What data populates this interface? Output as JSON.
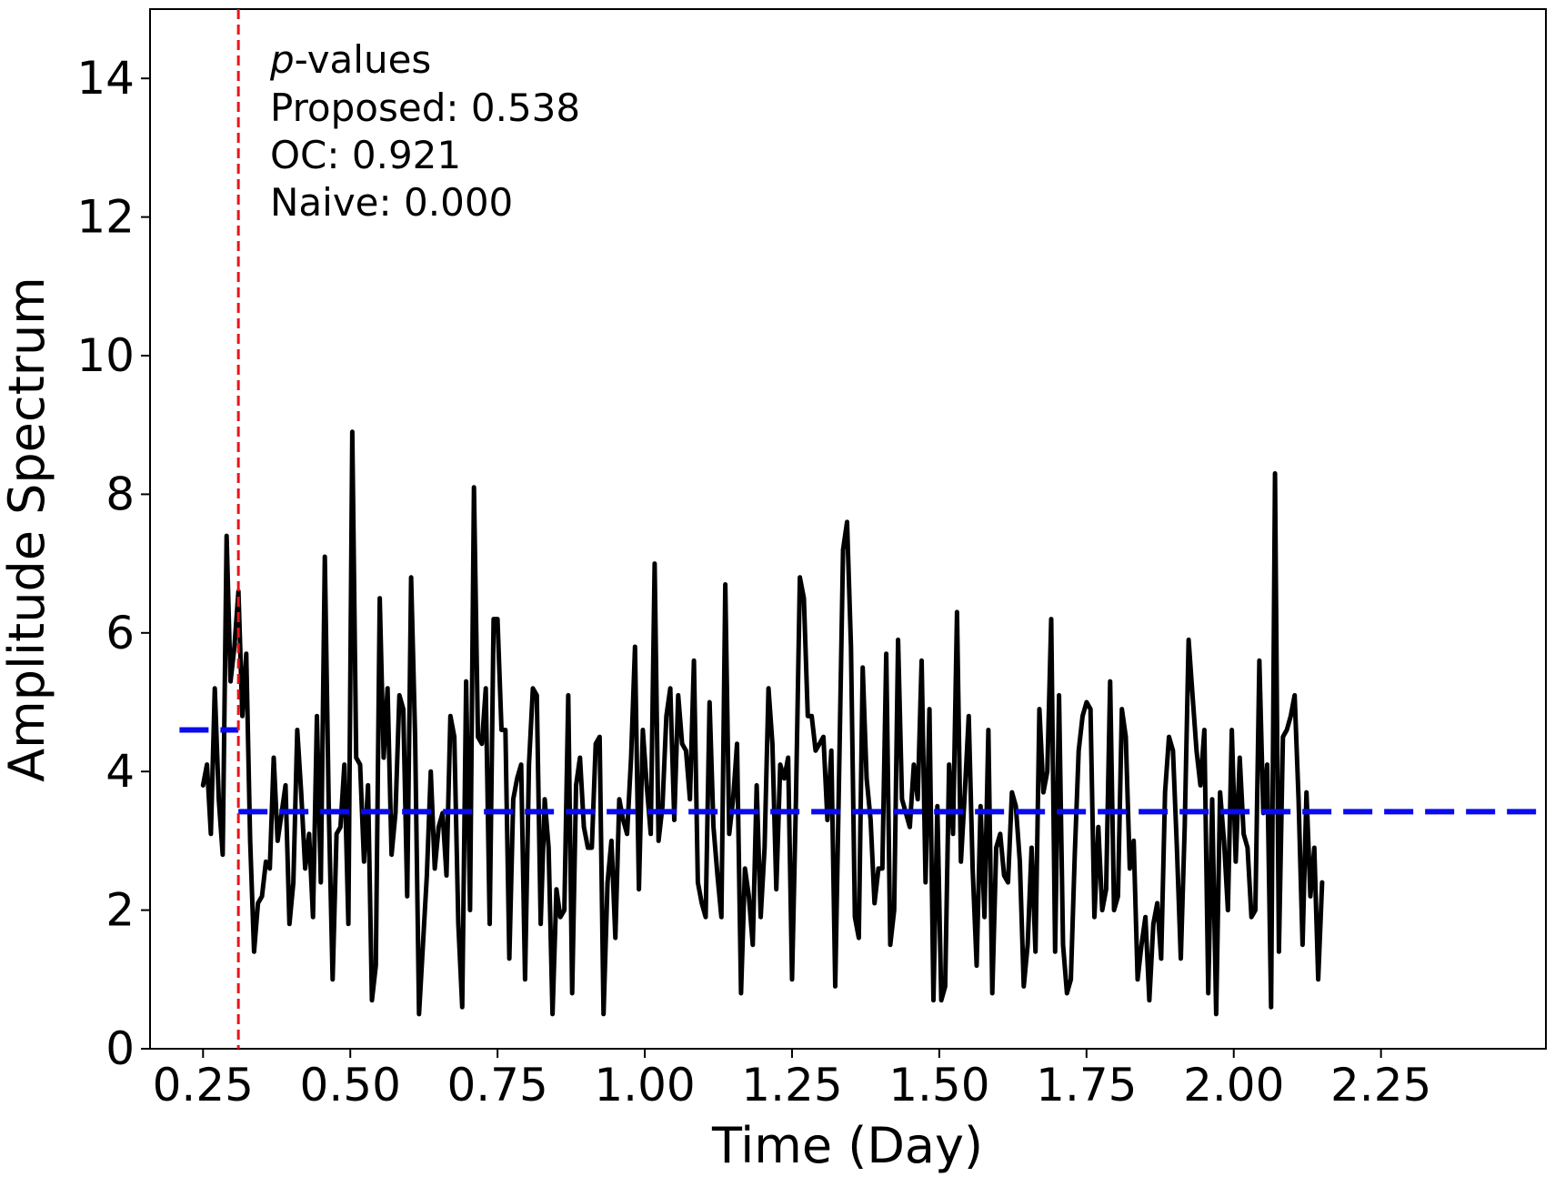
{
  "chart_data": {
    "type": "line",
    "xlabel": "Time (Day)",
    "ylabel": "Amplitude Spectrum",
    "xlim": [
      0.16,
      2.53
    ],
    "ylim": [
      0,
      15
    ],
    "xticks": [
      "0.25",
      "0.50",
      "0.75",
      "1.00",
      "1.25",
      "1.50",
      "1.75",
      "2.00",
      "2.25"
    ],
    "yticks": [
      "0",
      "2",
      "4",
      "6",
      "8",
      "10",
      "12",
      "14"
    ],
    "grid": false,
    "annotation": {
      "header_italic": "p",
      "header_rest": "-values",
      "lines": [
        "Proposed: 0.538",
        "OC: 0.921",
        "Naive: 0.000"
      ]
    },
    "change_point": {
      "x": 0.31,
      "color": "#e8141c",
      "style": "dashed"
    },
    "segment_means": {
      "color": "#0a0aef",
      "segments": [
        {
          "x0": 0.21,
          "x1": 0.31,
          "y": 4.6
        },
        {
          "x0": 0.31,
          "x1": 2.52,
          "y": 3.42
        }
      ]
    },
    "series": [
      {
        "color": "#000000",
        "x_start": 0.25,
        "x_step": 0.006667,
        "values": [
          3.8,
          4.1,
          3.1,
          5.2,
          3.6,
          2.8,
          7.4,
          5.3,
          5.8,
          6.6,
          4.8,
          5.7,
          3.0,
          1.4,
          2.1,
          2.2,
          2.7,
          2.6,
          4.2,
          3.0,
          3.4,
          3.8,
          1.8,
          2.4,
          4.6,
          3.7,
          2.6,
          3.1,
          1.9,
          4.8,
          2.4,
          7.1,
          3.5,
          1.0,
          3.1,
          3.2,
          4.1,
          1.8,
          8.9,
          4.2,
          4.1,
          2.7,
          3.8,
          0.7,
          1.2,
          6.5,
          4.2,
          5.2,
          2.8,
          3.4,
          5.1,
          4.9,
          2.2,
          6.8,
          4.5,
          0.5,
          1.5,
          2.5,
          4.0,
          2.6,
          3.2,
          3.4,
          2.5,
          4.8,
          4.5,
          1.8,
          0.6,
          5.3,
          2.0,
          8.1,
          4.5,
          4.4,
          5.2,
          1.8,
          6.2,
          6.2,
          4.6,
          4.6,
          1.3,
          3.6,
          3.9,
          4.1,
          1.0,
          4.1,
          5.2,
          5.1,
          1.8,
          3.6,
          2.9,
          0.5,
          2.3,
          1.9,
          2.0,
          5.1,
          0.8,
          3.8,
          4.2,
          3.2,
          2.9,
          2.9,
          4.4,
          4.5,
          0.5,
          2.4,
          3.0,
          1.6,
          3.6,
          3.3,
          3.1,
          4.2,
          5.8,
          2.3,
          4.6,
          3.8,
          3.1,
          7.0,
          3.0,
          3.5,
          4.8,
          5.2,
          3.3,
          5.1,
          4.4,
          4.3,
          3.6,
          5.6,
          2.4,
          2.1,
          1.9,
          5.0,
          3.2,
          2.5,
          1.9,
          6.7,
          3.1,
          3.6,
          4.4,
          0.8,
          2.6,
          2.2,
          1.5,
          3.8,
          1.9,
          2.9,
          5.2,
          4.4,
          2.3,
          4.1,
          3.9,
          4.2,
          1.0,
          3.6,
          6.8,
          6.5,
          4.8,
          4.8,
          4.3,
          4.4,
          4.5,
          3.3,
          4.3,
          0.9,
          4.0,
          7.2,
          7.6,
          5.8,
          1.9,
          1.6,
          5.5,
          3.9,
          3.3,
          2.1,
          2.6,
          2.6,
          5.7,
          1.5,
          2.0,
          5.9,
          3.6,
          3.4,
          3.2,
          4.1,
          3.6,
          5.6,
          2.4,
          4.9,
          0.7,
          3.5,
          0.7,
          0.9,
          4.1,
          3.1,
          6.3,
          2.7,
          3.7,
          4.8,
          2.6,
          1.2,
          3.5,
          1.9,
          4.6,
          0.8,
          2.9,
          3.1,
          2.5,
          2.4,
          3.7,
          3.5,
          2.7,
          0.9,
          1.5,
          2.9,
          1.4,
          4.9,
          3.7,
          4.0,
          6.2,
          1.4,
          5.1,
          1.5,
          0.8,
          1.0,
          2.8,
          4.3,
          4.8,
          5.0,
          4.9,
          1.9,
          3.2,
          2.0,
          2.3,
          5.3,
          2.0,
          2.2,
          4.9,
          4.5,
          2.6,
          3.0,
          1.0,
          1.5,
          1.9,
          0.7,
          1.8,
          2.1,
          1.3,
          3.7,
          4.5,
          4.3,
          2.9,
          1.3,
          3.2,
          5.9,
          5.1,
          4.3,
          3.8,
          4.6,
          0.8,
          3.6,
          0.5,
          3.7,
          3.0,
          2.0,
          4.6,
          2.7,
          4.2,
          3.1,
          2.9,
          1.9,
          2.0,
          5.6,
          3.4,
          4.1,
          0.6,
          8.3,
          1.4,
          4.5,
          4.6,
          4.8,
          5.1,
          3.6,
          1.5,
          3.7,
          2.2,
          2.9,
          1.0,
          2.4
        ]
      }
    ]
  }
}
